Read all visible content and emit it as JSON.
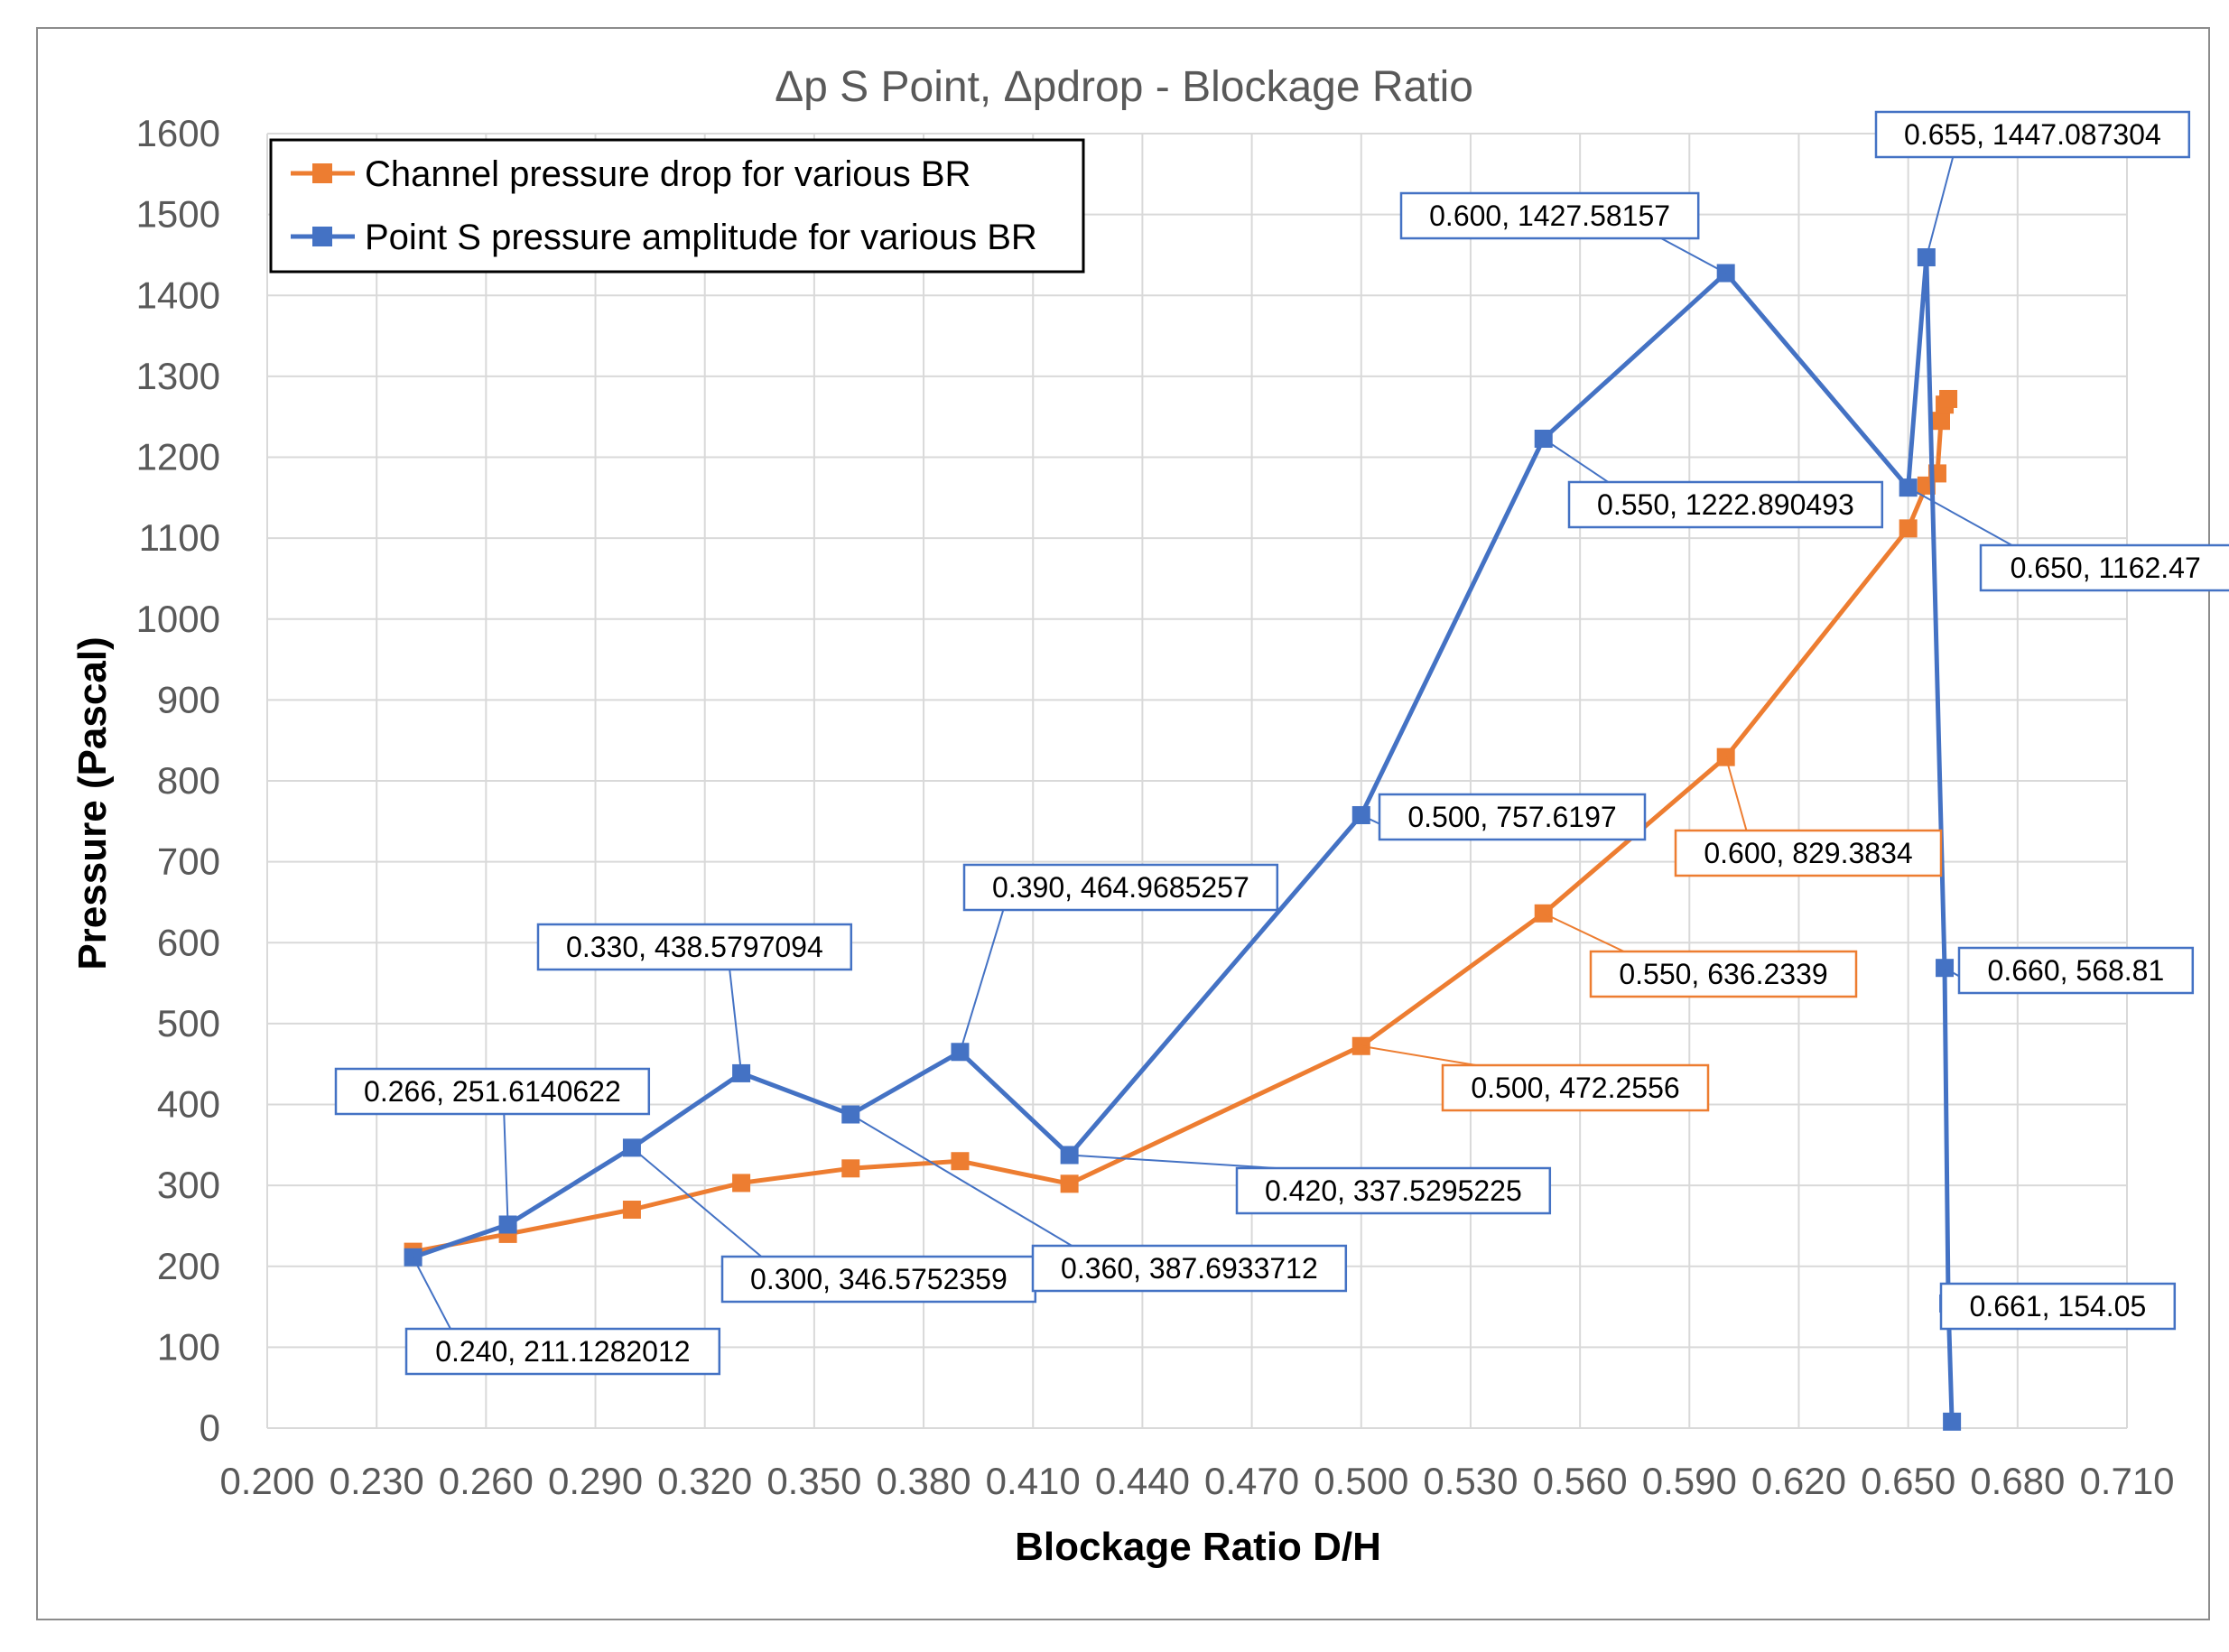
{
  "chart_data": {
    "type": "scatter",
    "title": "Δp S Point, Δpdrop - Blockage Ratio",
    "xlabel": "Blockage Ratio D/H",
    "ylabel": "Pressure (Pascal)",
    "xlim": [
      0.2,
      0.71
    ],
    "ylim": [
      0,
      1600
    ],
    "x_ticks": [
      "0.200",
      "0.230",
      "0.260",
      "0.290",
      "0.320",
      "0.350",
      "0.380",
      "0.410",
      "0.440",
      "0.470",
      "0.500",
      "0.530",
      "0.560",
      "0.590",
      "0.620",
      "0.650",
      "0.680",
      "0.710"
    ],
    "y_ticks": [
      "0",
      "100",
      "200",
      "300",
      "400",
      "500",
      "600",
      "700",
      "800",
      "900",
      "1000",
      "1100",
      "1200",
      "1300",
      "1400",
      "1500",
      "1600"
    ],
    "grid": true,
    "legend_position": "top-left",
    "series": [
      {
        "name": "Channel pressure drop for various BR",
        "color": "#ED7D31",
        "marker": "square",
        "x": [
          0.24,
          0.266,
          0.3,
          0.33,
          0.36,
          0.39,
          0.42,
          0.5,
          0.55,
          0.6,
          0.65,
          0.655,
          0.658,
          0.659,
          0.66,
          0.661
        ],
        "y": [
          218,
          240,
          270,
          303,
          321,
          330,
          302,
          472.2556,
          636.2339,
          829.3834,
          1112,
          1165,
          1180,
          1245,
          1265,
          1272
        ]
      },
      {
        "name": "Point S pressure amplitude for various BR",
        "color": "#4472C4",
        "marker": "square",
        "x": [
          0.24,
          0.266,
          0.3,
          0.33,
          0.36,
          0.39,
          0.42,
          0.5,
          0.55,
          0.6,
          0.65,
          0.655,
          0.66,
          0.661,
          0.662
        ],
        "y": [
          211.1282012,
          251.6140622,
          346.5752359,
          438.5797094,
          387.6933712,
          464.9685257,
          337.5295225,
          757.6197,
          1222.890493,
          1427.58157,
          1162.47,
          1447.087304,
          568.81,
          154.05,
          8
        ]
      }
    ],
    "annotations": [
      {
        "text": "0.240, 211.1282012",
        "series": 1,
        "point": 0,
        "color": "#4472C4"
      },
      {
        "text": "0.266, 251.6140622",
        "series": 1,
        "point": 1,
        "color": "#4472C4"
      },
      {
        "text": "0.300, 346.5752359",
        "series": 1,
        "point": 2,
        "color": "#4472C4"
      },
      {
        "text": "0.330, 438.5797094",
        "series": 1,
        "point": 3,
        "color": "#4472C4"
      },
      {
        "text": "0.360, 387.6933712",
        "series": 1,
        "point": 4,
        "color": "#4472C4"
      },
      {
        "text": "0.390, 464.9685257",
        "series": 1,
        "point": 5,
        "color": "#4472C4"
      },
      {
        "text": "0.420, 337.5295225",
        "series": 1,
        "point": 6,
        "color": "#4472C4"
      },
      {
        "text": "0.500, 757.6197",
        "series": 1,
        "point": 7,
        "color": "#4472C4"
      },
      {
        "text": "0.550, 1222.890493",
        "series": 1,
        "point": 8,
        "color": "#4472C4"
      },
      {
        "text": "0.600, 1427.58157",
        "series": 1,
        "point": 9,
        "color": "#4472C4"
      },
      {
        "text": "0.650, 1162.47",
        "series": 1,
        "point": 10,
        "color": "#4472C4"
      },
      {
        "text": "0.655, 1447.087304",
        "series": 1,
        "point": 11,
        "color": "#4472C4"
      },
      {
        "text": "0.660, 568.81",
        "series": 1,
        "point": 12,
        "color": "#4472C4"
      },
      {
        "text": "0.661, 154.05",
        "series": 1,
        "point": 13,
        "color": "#4472C4"
      },
      {
        "text": "0.500, 472.2556",
        "series": 0,
        "point": 7,
        "color": "#ED7D31"
      },
      {
        "text": "0.550, 636.2339",
        "series": 0,
        "point": 8,
        "color": "#ED7D31"
      },
      {
        "text": "0.600, 829.3834",
        "series": 0,
        "point": 9,
        "color": "#ED7D31"
      }
    ]
  }
}
